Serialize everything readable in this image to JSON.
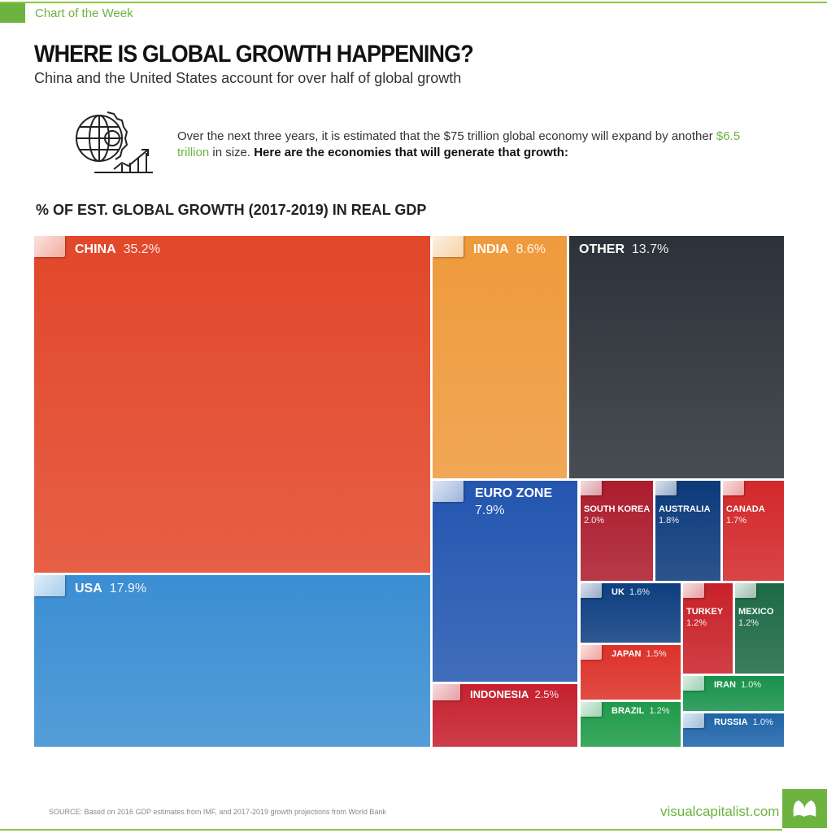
{
  "header": {
    "kicker": "Chart of the Week",
    "title": "WHERE IS GLOBAL GROWTH HAPPENING?",
    "subtitle": "China and the United States account for over half of global growth",
    "intro_1": "Over the next three years, it is estimated that the $75 trillion global economy will expand by another ",
    "intro_highlight": "$6.5 trillion",
    "intro_2": " in size. ",
    "intro_bold": "Here are the economies that will generate that growth:"
  },
  "chart_data": {
    "type": "treemap",
    "title": "% OF EST. GLOBAL GROWTH (2017-2019) IN REAL GDP",
    "unit": "%",
    "items": [
      {
        "name": "CHINA",
        "value": 35.2,
        "color": "#e2472a"
      },
      {
        "name": "USA",
        "value": 17.9,
        "color": "#3b8ed3"
      },
      {
        "name": "INDIA",
        "value": 8.6,
        "color": "#ef9a3c"
      },
      {
        "name": "OTHER",
        "value": 13.7,
        "color": "#2c3239"
      },
      {
        "name": "EURO ZONE",
        "value": 7.9,
        "color": "#2456b0"
      },
      {
        "name": "INDONESIA",
        "value": 2.5,
        "color": "#c5202e"
      },
      {
        "name": "SOUTH KOREA",
        "value": 2.0,
        "color": "#ac1c2d"
      },
      {
        "name": "AUSTRALIA",
        "value": 1.8,
        "color": "#0c3a7a"
      },
      {
        "name": "CANADA",
        "value": 1.7,
        "color": "#d3282a"
      },
      {
        "name": "UK",
        "value": 1.6,
        "color": "#0d3e7f"
      },
      {
        "name": "JAPAN",
        "value": 1.5,
        "color": "#dc3128"
      },
      {
        "name": "BRAZIL",
        "value": 1.2,
        "color": "#1f9a48"
      },
      {
        "name": "TURKEY",
        "value": 1.2,
        "color": "#c82128"
      },
      {
        "name": "MEXICO",
        "value": 1.2,
        "color": "#1d6a45"
      },
      {
        "name": "IRAN",
        "value": 1.0,
        "color": "#17924b"
      },
      {
        "name": "RUSSIA",
        "value": 1.0,
        "color": "#1f64a8"
      }
    ]
  },
  "footer": {
    "source": "SOURCE: Based on 2016 GDP estimates from IMF, and 2017-2019 growth projections from World Bank",
    "site": "visualcapitalist.com"
  },
  "colors": {
    "accent": "#6cb33f"
  }
}
